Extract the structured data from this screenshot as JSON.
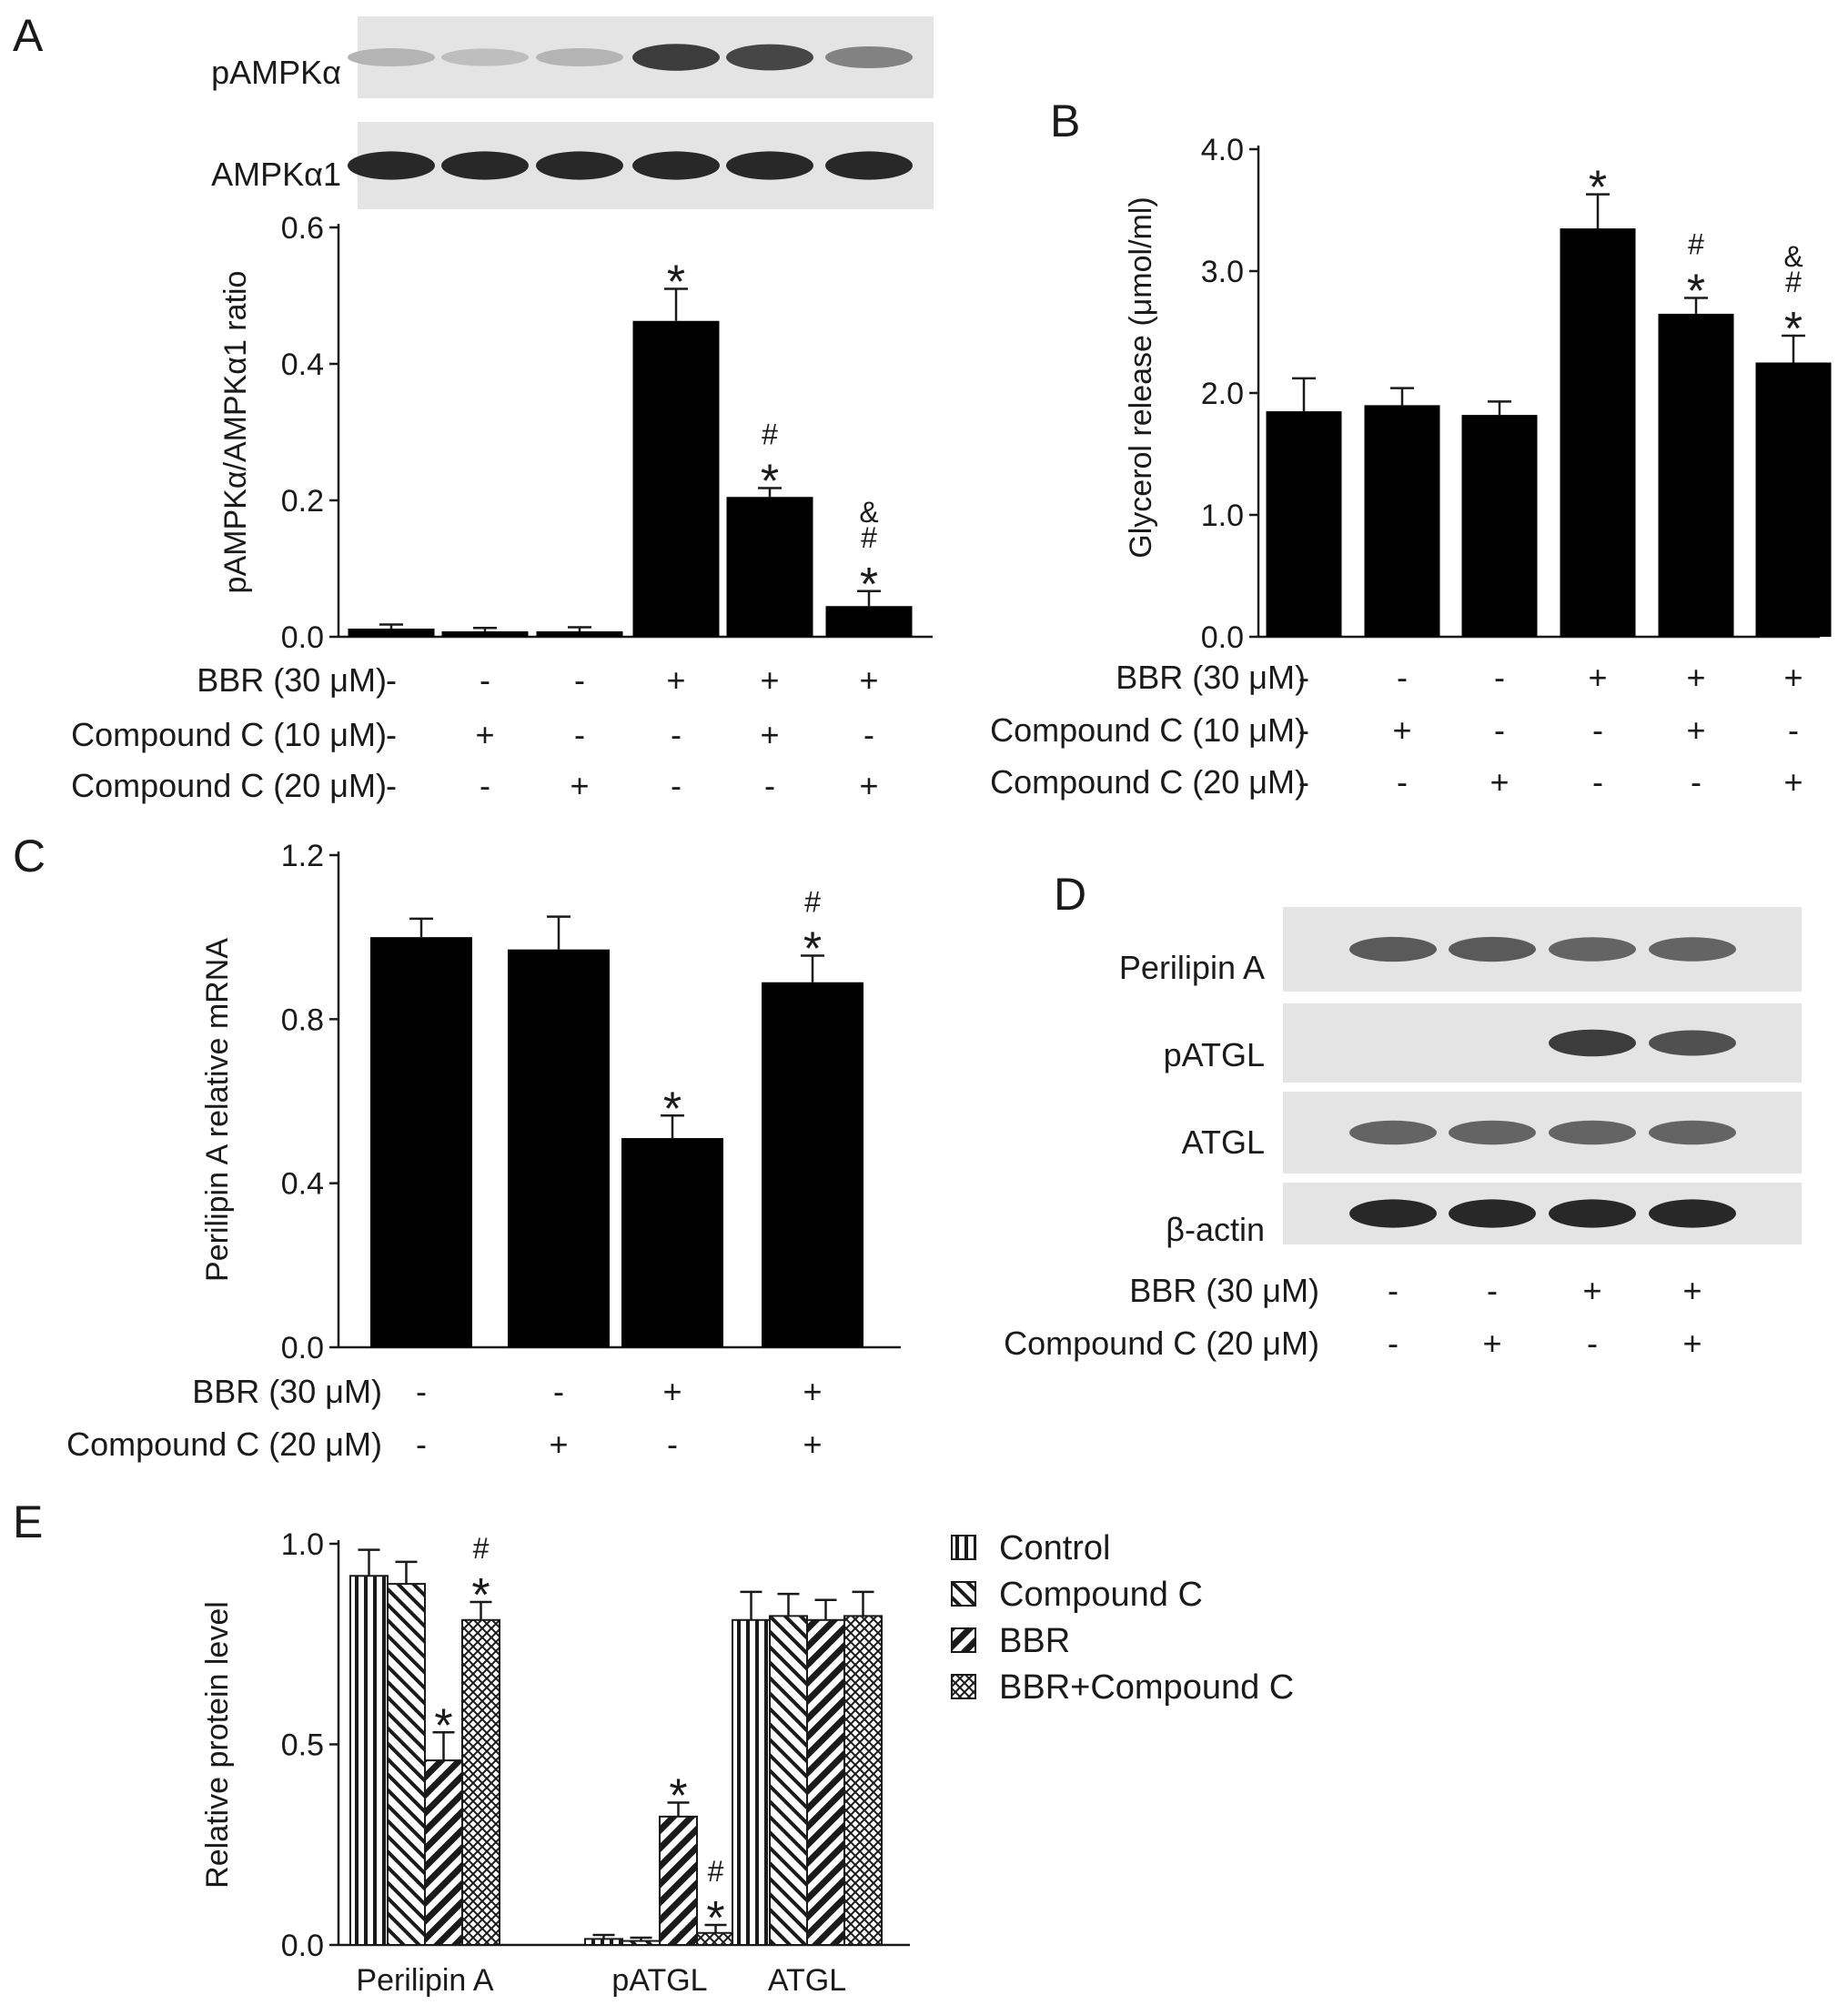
{
  "panelA": {
    "letter": "A",
    "blot_labels": [
      "pAMPKα",
      "AMPKα1"
    ],
    "blot_bands": [
      [
        0.25,
        0.2,
        0.25,
        0.85,
        0.8,
        0.5
      ],
      [
        0.95,
        0.95,
        0.95,
        0.95,
        0.95,
        0.95
      ]
    ],
    "conditions": [
      {
        "label": "BBR (30 μM)",
        "signs": [
          "-",
          "-",
          "-",
          "+",
          "+",
          "+"
        ]
      },
      {
        "label": "Compound C (10 μM)",
        "signs": [
          "-",
          "+",
          "-",
          "-",
          "+",
          "-"
        ]
      },
      {
        "label": "Compound C (20 μM)",
        "signs": [
          "-",
          "-",
          "+",
          "-",
          "-",
          "+"
        ]
      }
    ],
    "chart_data": {
      "type": "bar",
      "ylabel": "pAMPKα/AMPKα1 ratio",
      "ylim": [
        0,
        0.6
      ],
      "yticks": [
        "0.0",
        "0.2",
        "0.4",
        "0.6"
      ],
      "values": [
        0.012,
        0.008,
        0.008,
        0.463,
        0.205,
        0.045
      ],
      "errors": [
        0.006,
        0.005,
        0.006,
        0.047,
        0.013,
        0.022
      ],
      "marks": [
        [],
        [],
        [],
        [
          "*"
        ],
        [
          "#",
          "*"
        ],
        [
          "&",
          "#",
          "*"
        ]
      ]
    }
  },
  "panelB": {
    "letter": "B",
    "conditions": [
      {
        "label": "BBR (30 μM)",
        "signs": [
          "-",
          "-",
          "-",
          "+",
          "+",
          "+"
        ]
      },
      {
        "label": "Compound C (10 μM)",
        "signs": [
          "-",
          "+",
          "-",
          "-",
          "+",
          "-"
        ]
      },
      {
        "label": "Compound C (20 μM)",
        "signs": [
          "-",
          "-",
          "+",
          "-",
          "-",
          "+"
        ]
      }
    ],
    "chart_data": {
      "type": "bar",
      "ylabel": "Glycerol release (μmol/ml)",
      "ylim": [
        0,
        4.0
      ],
      "yticks": [
        "0.0",
        "1.0",
        "2.0",
        "3.0",
        "4.0"
      ],
      "values": [
        1.85,
        1.9,
        1.82,
        3.35,
        2.65,
        2.25
      ],
      "errors": [
        0.27,
        0.14,
        0.11,
        0.28,
        0.13,
        0.22
      ],
      "marks": [
        [],
        [],
        [],
        [
          "*"
        ],
        [
          "#",
          "*"
        ],
        [
          "&",
          "#",
          "*"
        ]
      ]
    }
  },
  "panelC": {
    "letter": "C",
    "conditions": [
      {
        "label": "BBR (30 μM)",
        "signs": [
          "-",
          "-",
          "+",
          "+"
        ]
      },
      {
        "label": "Compound C (20 μM)",
        "signs": [
          "-",
          "+",
          "-",
          "+"
        ]
      }
    ],
    "chart_data": {
      "type": "bar",
      "ylabel": "Perilipin A relative mRNA",
      "ylim": [
        0,
        1.2
      ],
      "yticks": [
        "0.0",
        "0.4",
        "0.8",
        "1.2"
      ],
      "values": [
        1.0,
        0.97,
        0.51,
        0.89
      ],
      "errors": [
        0.045,
        0.08,
        0.055,
        0.065
      ],
      "marks": [
        [],
        [],
        [
          "*"
        ],
        [
          "#",
          "*"
        ]
      ]
    }
  },
  "panelD": {
    "letter": "D",
    "blot_labels": [
      "Perilipin A",
      "pATGL",
      "ATGL",
      "β-actin"
    ],
    "blot_bands": [
      [
        0.7,
        0.7,
        0.65,
        0.65
      ],
      [
        0.0,
        0.0,
        0.85,
        0.75
      ],
      [
        0.65,
        0.65,
        0.65,
        0.65
      ],
      [
        0.95,
        0.95,
        0.95,
        0.95
      ]
    ],
    "conditions": [
      {
        "label": "BBR (30 μM)",
        "signs": [
          "-",
          "-",
          "+",
          "+"
        ]
      },
      {
        "label": "Compound C (20 μM)",
        "signs": [
          "-",
          "+",
          "-",
          "+"
        ]
      }
    ]
  },
  "panelE": {
    "letter": "E",
    "chart_data": {
      "type": "bar",
      "ylabel": "Relative protein level",
      "ylim": [
        0,
        1.0
      ],
      "yticks": [
        "0.0",
        "0.5",
        "1.0"
      ],
      "categories": [
        "Perilipin A",
        "pATGL",
        "ATGL"
      ],
      "series": [
        {
          "name": "Control",
          "pattern": "vertical",
          "values": [
            0.92,
            0.015,
            0.81
          ],
          "errors": [
            0.065,
            0.01,
            0.07
          ]
        },
        {
          "name": "Compound C",
          "pattern": "back-diagonal",
          "values": [
            0.9,
            0.01,
            0.82
          ],
          "errors": [
            0.055,
            0.008,
            0.055
          ]
        },
        {
          "name": "BBR",
          "pattern": "diagonal",
          "values": [
            0.46,
            0.32,
            0.81
          ],
          "errors": [
            0.07,
            0.035,
            0.05
          ]
        },
        {
          "name": "BBR+Compound C",
          "pattern": "crosshatch",
          "values": [
            0.81,
            0.03,
            0.82
          ],
          "errors": [
            0.045,
            0.02,
            0.06
          ]
        }
      ],
      "marks": [
        [
          [],
          [],
          [
            "*"
          ],
          [
            "#",
            "*"
          ]
        ],
        [
          [],
          [],
          [
            "*"
          ],
          [
            "#",
            "*"
          ]
        ],
        [
          [],
          [],
          [],
          []
        ]
      ],
      "legend_position": "right"
    }
  }
}
